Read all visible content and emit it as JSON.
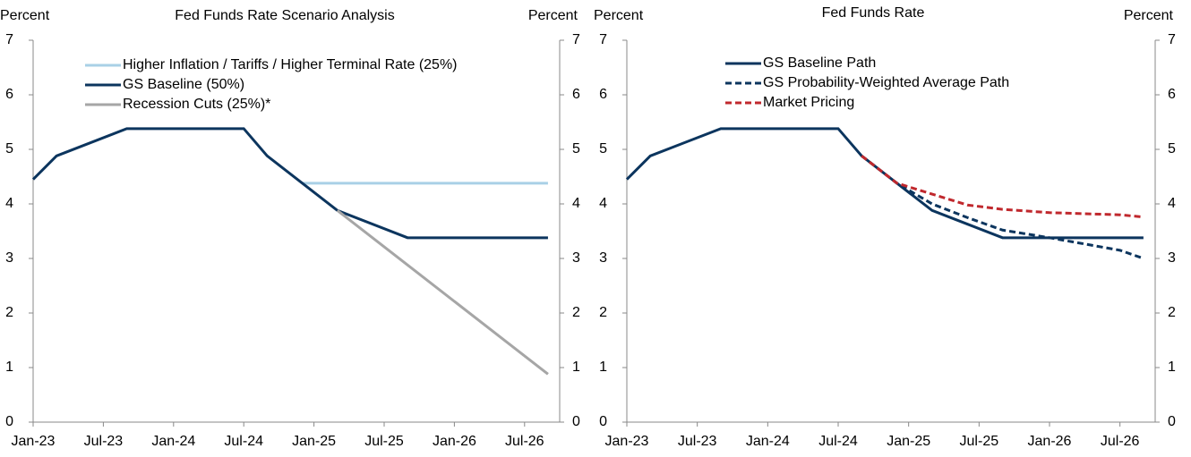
{
  "chart_data": [
    {
      "type": "line",
      "title": "Fed Funds Rate Scenario Analysis",
      "y_label": "Percent",
      "y2_label": "Percent",
      "x": [
        "2023-01",
        "2023-03",
        "2023-09",
        "2024-07",
        "2024-09",
        "2024-12",
        "2025-03",
        "2025-09",
        "2026-09"
      ],
      "xlim": [
        "2023-01",
        "2026-10"
      ],
      "xticks": [
        {
          "value": "2023-01",
          "label": "Jan-23"
        },
        {
          "value": "2023-07",
          "label": "Jul-23"
        },
        {
          "value": "2024-01",
          "label": "Jan-24"
        },
        {
          "value": "2024-07",
          "label": "Jul-24"
        },
        {
          "value": "2025-01",
          "label": "Jan-25"
        },
        {
          "value": "2025-07",
          "label": "Jul-25"
        },
        {
          "value": "2026-01",
          "label": "Jan-26"
        },
        {
          "value": "2026-07",
          "label": "Jul-26"
        }
      ],
      "ylim": [
        0,
        7
      ],
      "yticks": [
        0,
        1,
        2,
        3,
        4,
        5,
        6,
        7
      ],
      "y2lim": [
        0,
        7
      ],
      "y2ticks": [
        0,
        1,
        2,
        3,
        4,
        5,
        6,
        7
      ],
      "legend": "upper left",
      "series": [
        {
          "name": "Higher Inflation / Tariffs / Higher Terminal Rate (25%)",
          "color": "#a9d0e6",
          "dash": false,
          "values": [
            null,
            null,
            null,
            null,
            null,
            4.38,
            4.38,
            4.38,
            4.38
          ]
        },
        {
          "name": "GS Baseline (50%)",
          "color": "#0c355e",
          "dash": false,
          "values": [
            4.45,
            4.88,
            5.38,
            5.38,
            4.88,
            4.38,
            3.88,
            3.38,
            3.38
          ]
        },
        {
          "name": "Recession Cuts (25%)*",
          "color": "#a6a6a6",
          "dash": false,
          "values": [
            null,
            null,
            null,
            null,
            null,
            null,
            3.88,
            2.88,
            0.88
          ]
        }
      ]
    },
    {
      "type": "line",
      "title": "Fed Funds Rate",
      "y_label": "Percent",
      "y2_label": "Percent",
      "x": [
        "2023-01",
        "2023-03",
        "2023-09",
        "2024-07",
        "2024-09",
        "2024-12",
        "2025-03",
        "2025-06",
        "2025-09",
        "2026-01",
        "2026-07",
        "2026-09"
      ],
      "xlim": [
        "2023-01",
        "2026-10"
      ],
      "xticks": [
        {
          "value": "2023-01",
          "label": "Jan-23"
        },
        {
          "value": "2023-07",
          "label": "Jul-23"
        },
        {
          "value": "2024-01",
          "label": "Jan-24"
        },
        {
          "value": "2024-07",
          "label": "Jul-24"
        },
        {
          "value": "2025-01",
          "label": "Jan-25"
        },
        {
          "value": "2025-07",
          "label": "Jul-25"
        },
        {
          "value": "2026-01",
          "label": "Jan-26"
        },
        {
          "value": "2026-07",
          "label": "Jul-26"
        }
      ],
      "ylim": [
        0,
        7
      ],
      "yticks": [
        0,
        1,
        2,
        3,
        4,
        5,
        6,
        7
      ],
      "y2lim": [
        0,
        7
      ],
      "y2ticks": [
        0,
        1,
        2,
        3,
        4,
        5,
        6,
        7
      ],
      "legend": "upper left",
      "series": [
        {
          "name": "GS Baseline Path",
          "color": "#0c355e",
          "dash": false,
          "values": [
            4.45,
            4.88,
            5.38,
            5.38,
            4.88,
            4.38,
            3.88,
            3.63,
            3.38,
            3.38,
            3.38,
            3.38
          ]
        },
        {
          "name": "GS Probability-Weighted Average Path",
          "color": "#0c355e",
          "dash": true,
          "values": [
            null,
            null,
            null,
            null,
            4.88,
            4.38,
            4.0,
            3.75,
            3.52,
            3.38,
            3.15,
            3.0
          ]
        },
        {
          "name": "Market Pricing",
          "color": "#c0282d",
          "dash": true,
          "values": [
            null,
            null,
            null,
            null,
            4.88,
            4.38,
            4.18,
            3.98,
            3.9,
            3.84,
            3.8,
            3.76
          ]
        }
      ]
    }
  ]
}
